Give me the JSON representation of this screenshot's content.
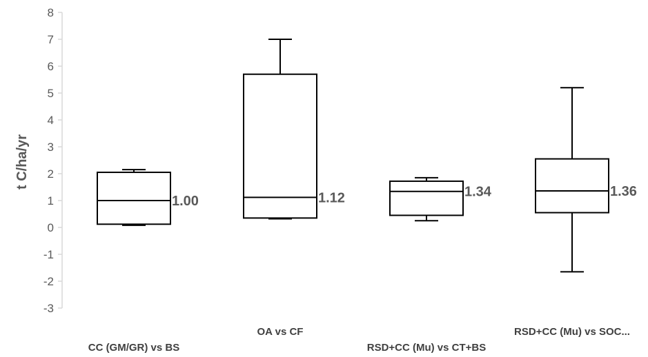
{
  "chart_data": {
    "type": "box",
    "ylabel": "t C/ha/yr",
    "xlabel": "",
    "title": "",
    "ylim": [
      -3,
      8
    ],
    "yticks": [
      "-3",
      "-2",
      "-1",
      "0",
      "1",
      "2",
      "3",
      "4",
      "5",
      "6",
      "7",
      "8"
    ],
    "grid": false,
    "categories": [
      "CC (GM/GR) vs BS",
      "OA vs CF",
      "RSD+CC (Mu) vs CT+BS",
      "RSD+CC (Mu) vs SOC..."
    ],
    "boxes": [
      {
        "min": 0.08,
        "q1": 0.12,
        "median": 1.0,
        "q3": 2.05,
        "max": 2.15,
        "median_label": "1.00"
      },
      {
        "min": 0.32,
        "q1": 0.35,
        "median": 1.12,
        "q3": 5.7,
        "max": 7.0,
        "median_label": "1.12"
      },
      {
        "min": 0.25,
        "q1": 0.45,
        "median": 1.34,
        "q3": 1.72,
        "max": 1.85,
        "median_label": "1.34"
      },
      {
        "min": -1.65,
        "q1": 0.55,
        "median": 1.36,
        "q3": 2.55,
        "max": 5.2,
        "median_label": "1.36"
      }
    ]
  }
}
